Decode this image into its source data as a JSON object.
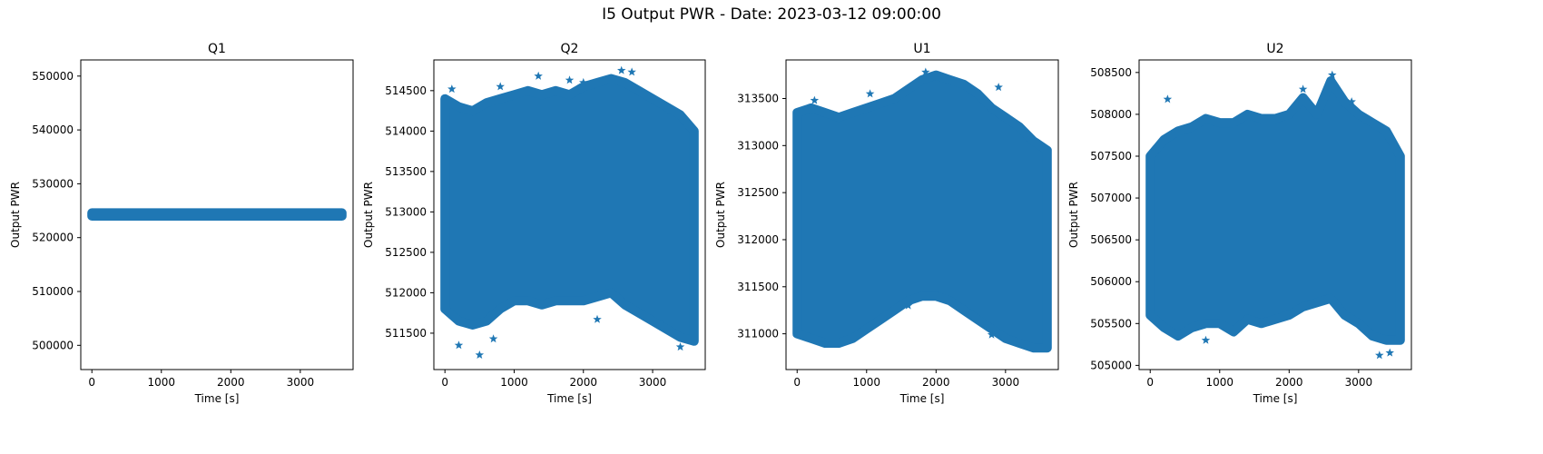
{
  "figure": {
    "title": "I5 Output PWR - Date: 2023-03-12 09:00:00"
  },
  "chart_data": [
    {
      "type": "scatter",
      "title": "Q1",
      "xlabel": "Time [s]",
      "ylabel": "Output PWR",
      "xlim": [
        -160,
        3760
      ],
      "ylim": [
        495500,
        553000
      ],
      "xticks": [
        0,
        1000,
        2000,
        3000
      ],
      "yticks": [
        500000,
        510000,
        520000,
        530000,
        540000,
        550000
      ],
      "marker": "star",
      "color": "#1f77b4",
      "series": [
        {
          "x": [
            0,
            3600
          ],
          "y_low": [
            524000,
            524000
          ],
          "y_high": [
            524600,
            524600
          ]
        }
      ],
      "outliers": []
    },
    {
      "type": "scatter",
      "title": "Q2",
      "xlabel": "Time [s]",
      "ylabel": "Output PWR",
      "xlim": [
        -160,
        3760
      ],
      "ylim": [
        511050,
        514880
      ],
      "xticks": [
        0,
        1000,
        2000,
        3000
      ],
      "yticks": [
        511500,
        512000,
        512500,
        513000,
        513500,
        514000,
        514500
      ],
      "marker": "star",
      "color": "#1f77b4",
      "series": [
        {
          "x": [
            0,
            200,
            400,
            600,
            800,
            1000,
            1200,
            1400,
            1600,
            1800,
            2000,
            2200,
            2400,
            2600,
            2800,
            3000,
            3200,
            3400,
            3600
          ],
          "y_low": [
            511800,
            511650,
            511600,
            511650,
            511800,
            511900,
            511900,
            511850,
            511900,
            511900,
            511900,
            511950,
            512000,
            511850,
            511750,
            511650,
            511550,
            511450,
            511400
          ],
          "y_high": [
            514400,
            514300,
            514250,
            514350,
            514400,
            514450,
            514500,
            514450,
            514500,
            514450,
            514550,
            514600,
            514650,
            514600,
            514500,
            514400,
            514300,
            514200,
            514000
          ]
        }
      ],
      "outliers": [
        [
          100,
          514520
        ],
        [
          800,
          514550
        ],
        [
          1350,
          514680
        ],
        [
          1800,
          514630
        ],
        [
          2000,
          514600
        ],
        [
          2550,
          514750
        ],
        [
          2700,
          514730
        ],
        [
          200,
          511350
        ],
        [
          500,
          511230
        ],
        [
          700,
          511430
        ],
        [
          2200,
          511670
        ],
        [
          3400,
          511330
        ]
      ]
    },
    {
      "type": "scatter",
      "title": "U1",
      "xlabel": "Time [s]",
      "ylabel": "Output PWR",
      "xlim": [
        -160,
        3760
      ],
      "ylim": [
        310620,
        313910
      ],
      "xticks": [
        0,
        1000,
        2000,
        3000
      ],
      "yticks": [
        311000,
        311500,
        312000,
        312500,
        313000,
        313500
      ],
      "marker": "star",
      "color": "#1f77b4",
      "series": [
        {
          "x": [
            0,
            200,
            400,
            600,
            800,
            1000,
            1200,
            1400,
            1600,
            1800,
            2000,
            2200,
            2400,
            2600,
            2800,
            3000,
            3200,
            3400,
            3600
          ],
          "y_low": [
            311000,
            310950,
            310900,
            310900,
            310950,
            311050,
            311150,
            311250,
            311350,
            311400,
            311400,
            311350,
            311250,
            311150,
            311050,
            310950,
            310900,
            310850,
            310850
          ],
          "y_high": [
            313350,
            313400,
            313350,
            313300,
            313350,
            313400,
            313450,
            313500,
            313600,
            313700,
            313750,
            313700,
            313650,
            313550,
            313400,
            313300,
            313200,
            313050,
            312950
          ]
        }
      ],
      "outliers": [
        [
          250,
          313480
        ],
        [
          1050,
          313550
        ],
        [
          1850,
          313780
        ],
        [
          2900,
          313620
        ],
        [
          2800,
          310990
        ],
        [
          400,
          310900
        ],
        [
          1600,
          311300
        ]
      ]
    },
    {
      "type": "scatter",
      "title": "U2",
      "xlabel": "Time [s]",
      "ylabel": "Output PWR",
      "xlim": [
        -160,
        3760
      ],
      "ylim": [
        504950,
        508650
      ],
      "xticks": [
        0,
        1000,
        2000,
        3000
      ],
      "yticks": [
        505000,
        505500,
        506000,
        506500,
        507000,
        507500,
        508000,
        508500
      ],
      "marker": "star",
      "color": "#1f77b4",
      "series": [
        {
          "x": [
            0,
            200,
            400,
            600,
            800,
            1000,
            1200,
            1400,
            1600,
            1800,
            2000,
            2200,
            2400,
            2600,
            2800,
            3000,
            3200,
            3400,
            3600
          ],
          "y_low": [
            505600,
            505450,
            505350,
            505450,
            505500,
            505500,
            505400,
            505550,
            505500,
            505550,
            505600,
            505700,
            505750,
            505800,
            505600,
            505500,
            505350,
            505300,
            505300
          ],
          "y_high": [
            507500,
            507700,
            507800,
            507850,
            507950,
            507900,
            507900,
            508000,
            507950,
            507950,
            508000,
            508200,
            508000,
            508400,
            508150,
            508000,
            507900,
            507800,
            507500
          ]
        }
      ],
      "outliers": [
        [
          250,
          508180
        ],
        [
          2200,
          508300
        ],
        [
          2620,
          508470
        ],
        [
          2900,
          508150
        ],
        [
          3300,
          505120
        ],
        [
          3450,
          505150
        ],
        [
          800,
          505300
        ]
      ]
    }
  ]
}
